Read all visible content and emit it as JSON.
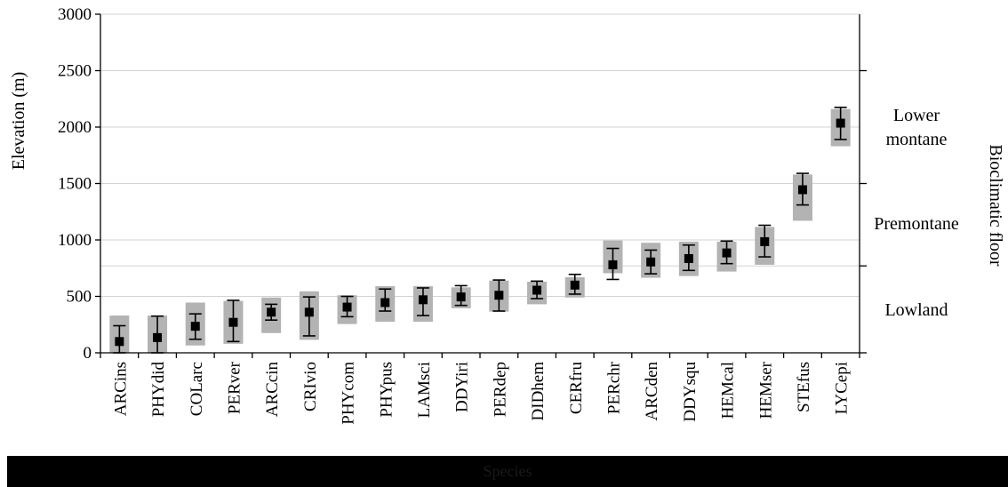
{
  "chart_data": {
    "type": "scatter",
    "subtype": "range-with-error-bars",
    "ylabel": "Elevation (m)",
    "xlabel": "Species",
    "ylim": [
      0,
      3000
    ],
    "yticks": [
      0,
      500,
      1000,
      1500,
      2000,
      2500,
      3000
    ],
    "grid": "horizontal",
    "categories": [
      "ARCins",
      "PHYdid",
      "COLarc",
      "PERver",
      "ARCcin",
      "CRIvio",
      "PHYcom",
      "PHYpus",
      "LAMsci",
      "DDYiri",
      "PERdep",
      "DIDhem",
      "CERfru",
      "PERchr",
      "ARCden",
      "DDYsqu",
      "HEMcal",
      "HEMser",
      "STEfus",
      "LYCepi"
    ],
    "series": [
      {
        "kind": "mean",
        "values": [
          100,
          135,
          235,
          270,
          360,
          360,
          405,
          445,
          470,
          495,
          510,
          555,
          600,
          780,
          805,
          835,
          885,
          985,
          1445,
          2035
        ]
      },
      {
        "kind": "error_low",
        "values": [
          0,
          0,
          120,
          100,
          290,
          150,
          320,
          370,
          330,
          420,
          370,
          480,
          520,
          650,
          700,
          730,
          790,
          850,
          1310,
          1890
        ]
      },
      {
        "kind": "error_high",
        "values": [
          240,
          325,
          345,
          465,
          430,
          495,
          500,
          565,
          575,
          595,
          645,
          635,
          695,
          925,
          910,
          955,
          990,
          1130,
          1590,
          2175
        ]
      },
      {
        "kind": "range_low",
        "values": [
          0,
          0,
          65,
          80,
          175,
          115,
          255,
          275,
          275,
          395,
          365,
          430,
          490,
          705,
          665,
          680,
          720,
          780,
          1170,
          1830
        ]
      },
      {
        "kind": "range_high",
        "values": [
          330,
          330,
          445,
          460,
          490,
          545,
          510,
          590,
          590,
          580,
          640,
          630,
          670,
          995,
          975,
          985,
          985,
          1115,
          1580,
          2160
        ]
      }
    ],
    "right_axis": {
      "label": "Bioclimatic floor",
      "tick_values": [
        0,
        770,
        1500,
        2500
      ],
      "floors": [
        {
          "label": "Lowland"
        },
        {
          "label": "Premontane"
        },
        {
          "label_lines": [
            "Lower",
            "montane"
          ]
        }
      ]
    },
    "colors": {
      "marker": "#000000",
      "range_box": "#b3b3b3",
      "grid": "#d3d3d3",
      "footer": "#000000"
    }
  }
}
